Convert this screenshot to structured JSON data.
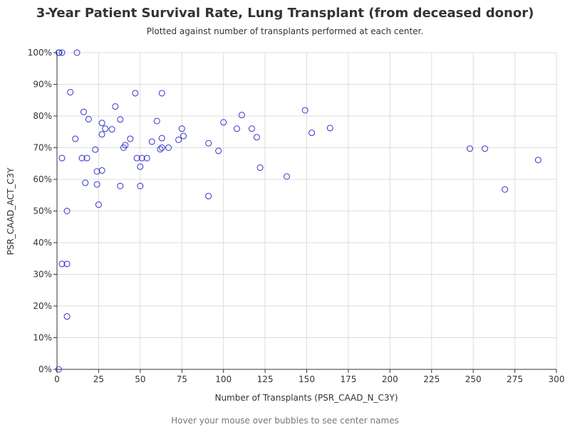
{
  "chart_data": {
    "type": "scatter",
    "title": "3-Year Patient Survival Rate, Lung Transplant (from deceased donor)",
    "subtitle": "Plotted against number of transplants performed at each center.",
    "xlabel": "Number of Transplants (PSR_CAAD_N_C3Y)",
    "ylabel": "PSR_CAAD_ACT_C3Y",
    "footer": "Hover your mouse over bubbles to see center names",
    "xlim": [
      0,
      300
    ],
    "ylim": [
      0,
      100
    ],
    "x_ticks": [
      "0",
      "25",
      "50",
      "75",
      "100",
      "125",
      "150",
      "175",
      "200",
      "225",
      "250",
      "275",
      "300"
    ],
    "y_ticks": [
      "0%",
      "10%",
      "20%",
      "30%",
      "40%",
      "50%",
      "60%",
      "70%",
      "80%",
      "90%",
      "100%"
    ],
    "grid": true,
    "marker_color": "#3333cc",
    "grid_color": "#dddddd",
    "points": [
      {
        "x": 1,
        "y": 100
      },
      {
        "x": 1.3,
        "y": 100
      },
      {
        "x": 3,
        "y": 100
      },
      {
        "x": 12,
        "y": 100
      },
      {
        "x": 8,
        "y": 87.5
      },
      {
        "x": 47,
        "y": 87.2
      },
      {
        "x": 63,
        "y": 87.2
      },
      {
        "x": 35,
        "y": 83
      },
      {
        "x": 16,
        "y": 81.3
      },
      {
        "x": 149,
        "y": 81.8
      },
      {
        "x": 111,
        "y": 80.3
      },
      {
        "x": 19,
        "y": 79
      },
      {
        "x": 38,
        "y": 78.9
      },
      {
        "x": 60,
        "y": 78.4
      },
      {
        "x": 27,
        "y": 77.8
      },
      {
        "x": 100,
        "y": 78
      },
      {
        "x": 29,
        "y": 76
      },
      {
        "x": 33,
        "y": 75.8
      },
      {
        "x": 75,
        "y": 76
      },
      {
        "x": 108,
        "y": 76
      },
      {
        "x": 117,
        "y": 76
      },
      {
        "x": 164,
        "y": 76.2
      },
      {
        "x": 27,
        "y": 74.2
      },
      {
        "x": 153,
        "y": 74.7
      },
      {
        "x": 76,
        "y": 73.7
      },
      {
        "x": 120,
        "y": 73.3
      },
      {
        "x": 11,
        "y": 72.8
      },
      {
        "x": 44,
        "y": 72.8
      },
      {
        "x": 63,
        "y": 73
      },
      {
        "x": 73,
        "y": 72.5
      },
      {
        "x": 57,
        "y": 71.9
      },
      {
        "x": 91,
        "y": 71.4
      },
      {
        "x": 41,
        "y": 70.8
      },
      {
        "x": 40,
        "y": 70
      },
      {
        "x": 62,
        "y": 69.5
      },
      {
        "x": 63,
        "y": 70
      },
      {
        "x": 67,
        "y": 70
      },
      {
        "x": 97,
        "y": 69
      },
      {
        "x": 23,
        "y": 69.4
      },
      {
        "x": 248,
        "y": 69.7
      },
      {
        "x": 257,
        "y": 69.7
      },
      {
        "x": 3,
        "y": 66.7
      },
      {
        "x": 15,
        "y": 66.7
      },
      {
        "x": 18,
        "y": 66.7
      },
      {
        "x": 48,
        "y": 66.7
      },
      {
        "x": 51,
        "y": 66.7
      },
      {
        "x": 54,
        "y": 66.7
      },
      {
        "x": 289,
        "y": 66.1
      },
      {
        "x": 50,
        "y": 64
      },
      {
        "x": 122,
        "y": 63.7
      },
      {
        "x": 27,
        "y": 62.8
      },
      {
        "x": 24,
        "y": 62.5
      },
      {
        "x": 138,
        "y": 60.9
      },
      {
        "x": 17,
        "y": 58.9
      },
      {
        "x": 24,
        "y": 58.4
      },
      {
        "x": 38,
        "y": 57.9
      },
      {
        "x": 50,
        "y": 57.9
      },
      {
        "x": 269,
        "y": 56.8
      },
      {
        "x": 91,
        "y": 54.7
      },
      {
        "x": 25,
        "y": 52
      },
      {
        "x": 6,
        "y": 50
      },
      {
        "x": 3,
        "y": 33.3
      },
      {
        "x": 6,
        "y": 33.3
      },
      {
        "x": 6,
        "y": 16.7
      },
      {
        "x": 1,
        "y": 0
      }
    ]
  }
}
